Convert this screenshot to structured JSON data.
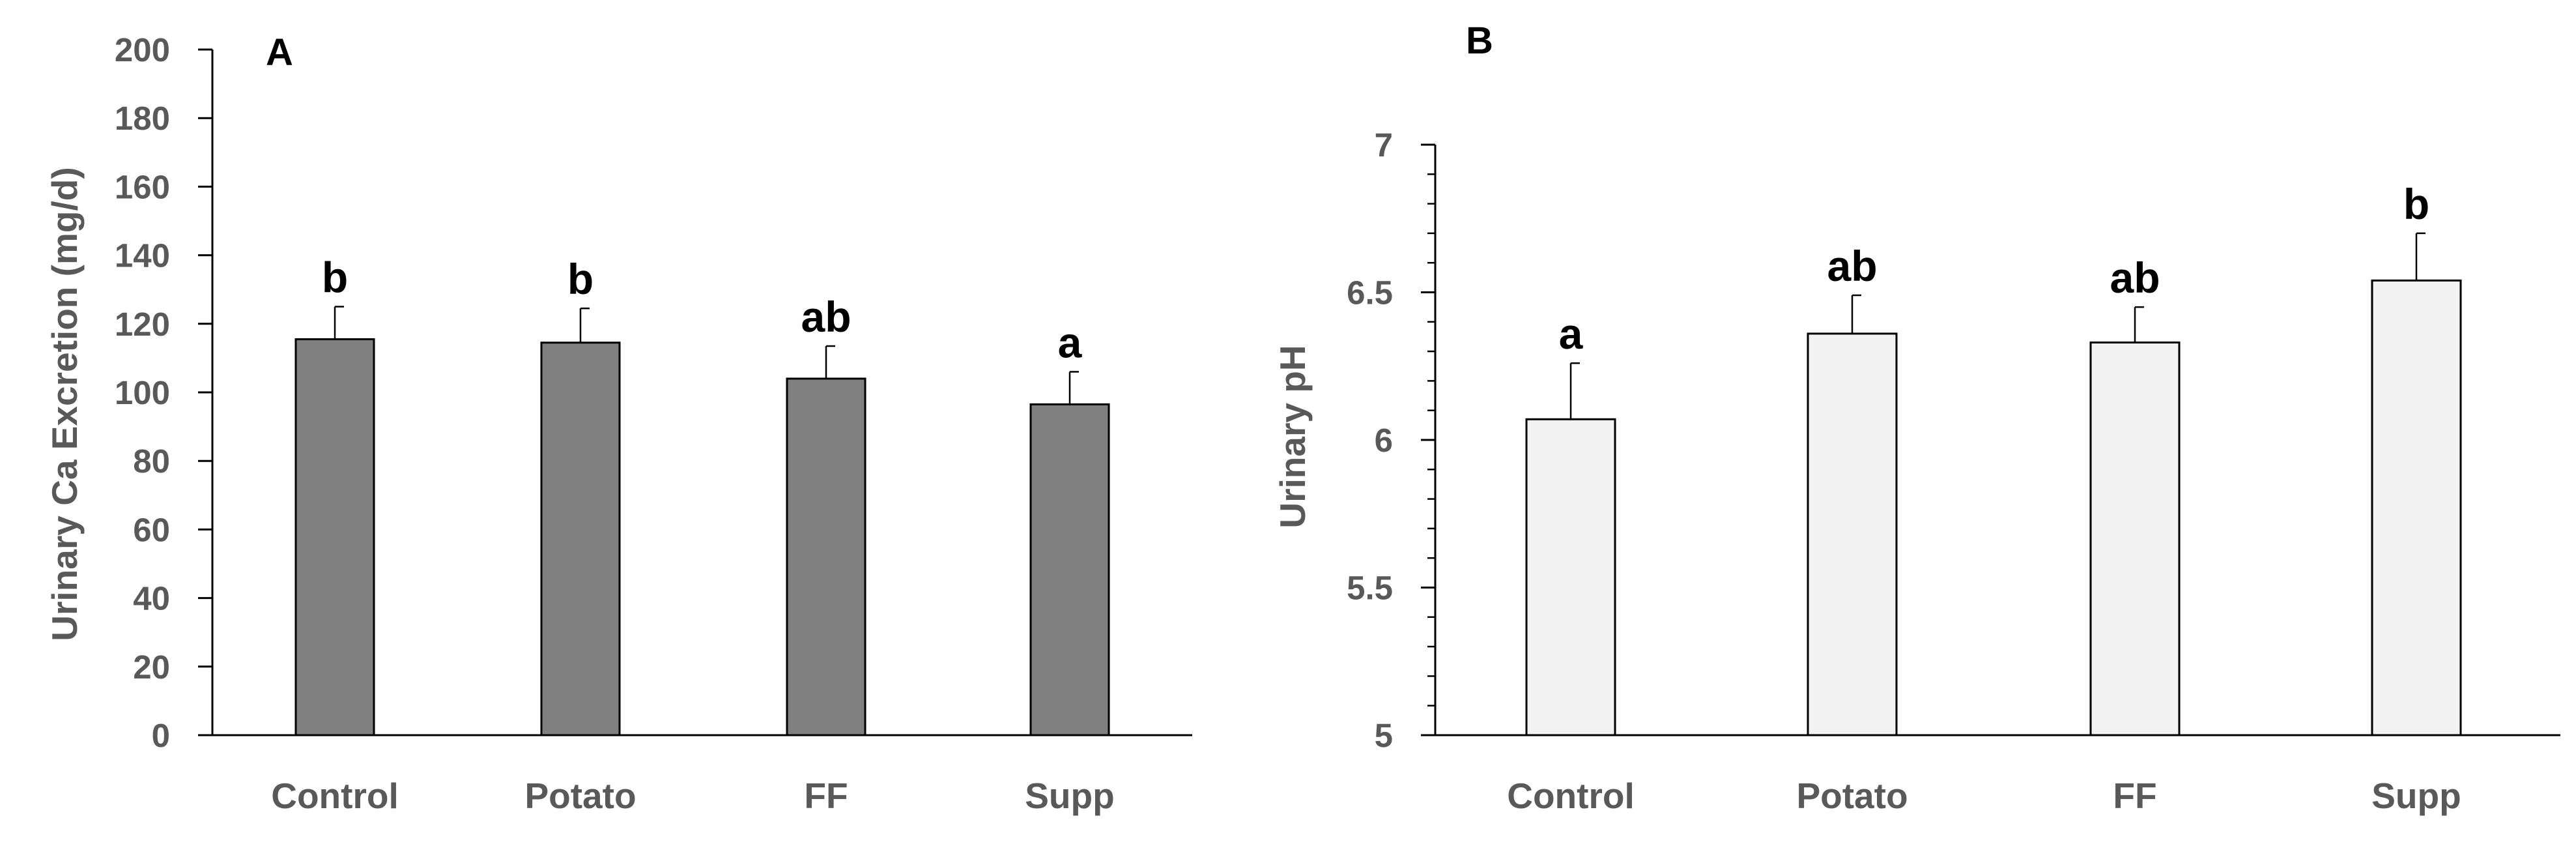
{
  "chart_data": [
    {
      "panel": "A",
      "type": "bar",
      "title": "",
      "categories": [
        "Control",
        "Potato",
        "FF",
        "Supp"
      ],
      "series": [
        {
          "name": "Urinary Ca Excretion",
          "values": [
            115.5,
            114.5,
            104,
            96.5
          ],
          "errors": [
            9.5,
            10,
            9.5,
            9.5
          ]
        }
      ],
      "significance": [
        "b",
        "b",
        "ab",
        "a"
      ],
      "xlabel": "",
      "ylabel": "Urinary Ca Excretion (mg/d)",
      "ylim": [
        0,
        200
      ],
      "yticks": [
        0,
        20,
        40,
        60,
        80,
        100,
        120,
        140,
        160,
        180,
        200
      ],
      "ytick_labels": [
        "0",
        "20",
        "40",
        "60",
        "80",
        "100",
        "120",
        "140",
        "160",
        "180",
        "200"
      ],
      "bar_color": "#808080",
      "grid": false,
      "legend": "none"
    },
    {
      "panel": "B",
      "type": "bar",
      "title": "",
      "categories": [
        "Control",
        "Potato",
        "FF",
        "Supp"
      ],
      "series": [
        {
          "name": "Urinary pH",
          "values": [
            6.07,
            6.36,
            6.33,
            6.54
          ],
          "errors": [
            0.19,
            0.13,
            0.12,
            0.16
          ]
        }
      ],
      "significance": [
        "a",
        "ab",
        "ab",
        "b"
      ],
      "xlabel": "",
      "ylabel": "Urinary pH",
      "ylim": [
        5,
        7
      ],
      "yticks": [
        5,
        5.5,
        6,
        6.5,
        7
      ],
      "ytick_labels": [
        "5",
        "5.5",
        "6",
        "6.5",
        "7"
      ],
      "minor_step": 0.1,
      "bar_color": "#f2f2f2",
      "grid": false,
      "legend": "none"
    }
  ]
}
